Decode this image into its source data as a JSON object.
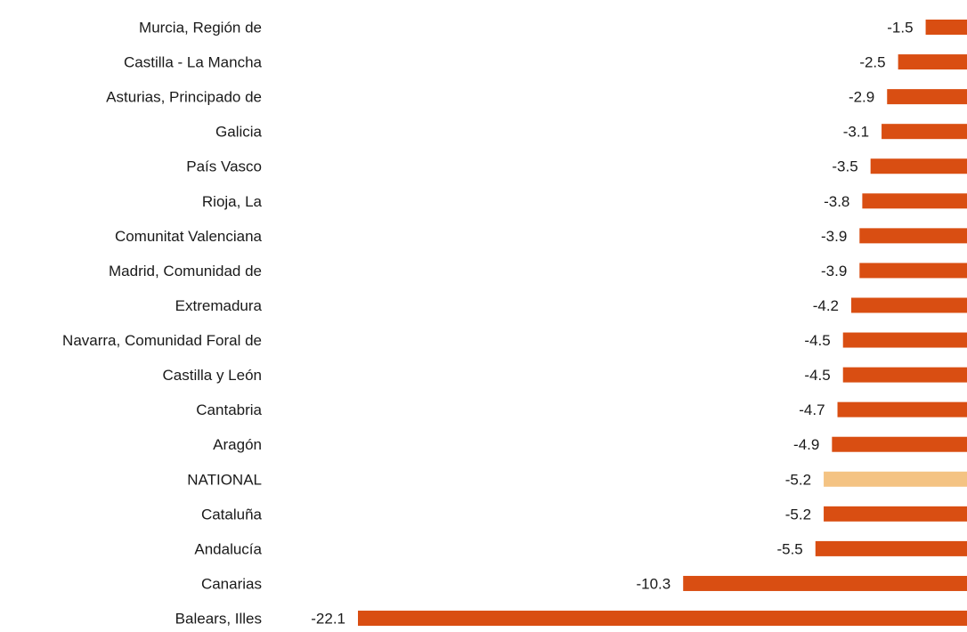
{
  "chart_data": {
    "type": "bar",
    "orientation": "horizontal",
    "categories": [
      "Murcia, Región de",
      "Castilla - La Mancha",
      "Asturias, Principado de",
      "Galicia",
      "País Vasco",
      "Rioja, La",
      "Comunitat Valenciana",
      "Madrid, Comunidad de",
      "Extremadura",
      "Navarra, Comunidad Foral de",
      "Castilla y León",
      "Cantabria",
      "Aragón",
      "NATIONAL",
      "Cataluña",
      "Andalucía",
      "Canarias",
      "Balears, Illes"
    ],
    "values": [
      -1.5,
      -2.5,
      -2.9,
      -3.1,
      -3.5,
      -3.8,
      -3.9,
      -3.9,
      -4.2,
      -4.5,
      -4.5,
      -4.7,
      -4.9,
      -5.2,
      -5.2,
      -5.5,
      -10.3,
      -22.1
    ],
    "data_labels": [
      "-1.5",
      "-2.5",
      "-2.9",
      "-3.1",
      "-3.5",
      "-3.8",
      "-3.9",
      "-3.9",
      "-4.2",
      "-4.5",
      "-4.5",
      "-4.7",
      "-4.9",
      "-5.2",
      "-5.2",
      "-5.5",
      "-10.3",
      "-22.1"
    ],
    "highlight_category": "NATIONAL",
    "colors": {
      "default": "#d94e12",
      "highlight": "#f4c383"
    },
    "xlim": [
      -22.1,
      0
    ],
    "grid": false,
    "legend": "none",
    "title": "",
    "xlabel": "",
    "ylabel": ""
  }
}
